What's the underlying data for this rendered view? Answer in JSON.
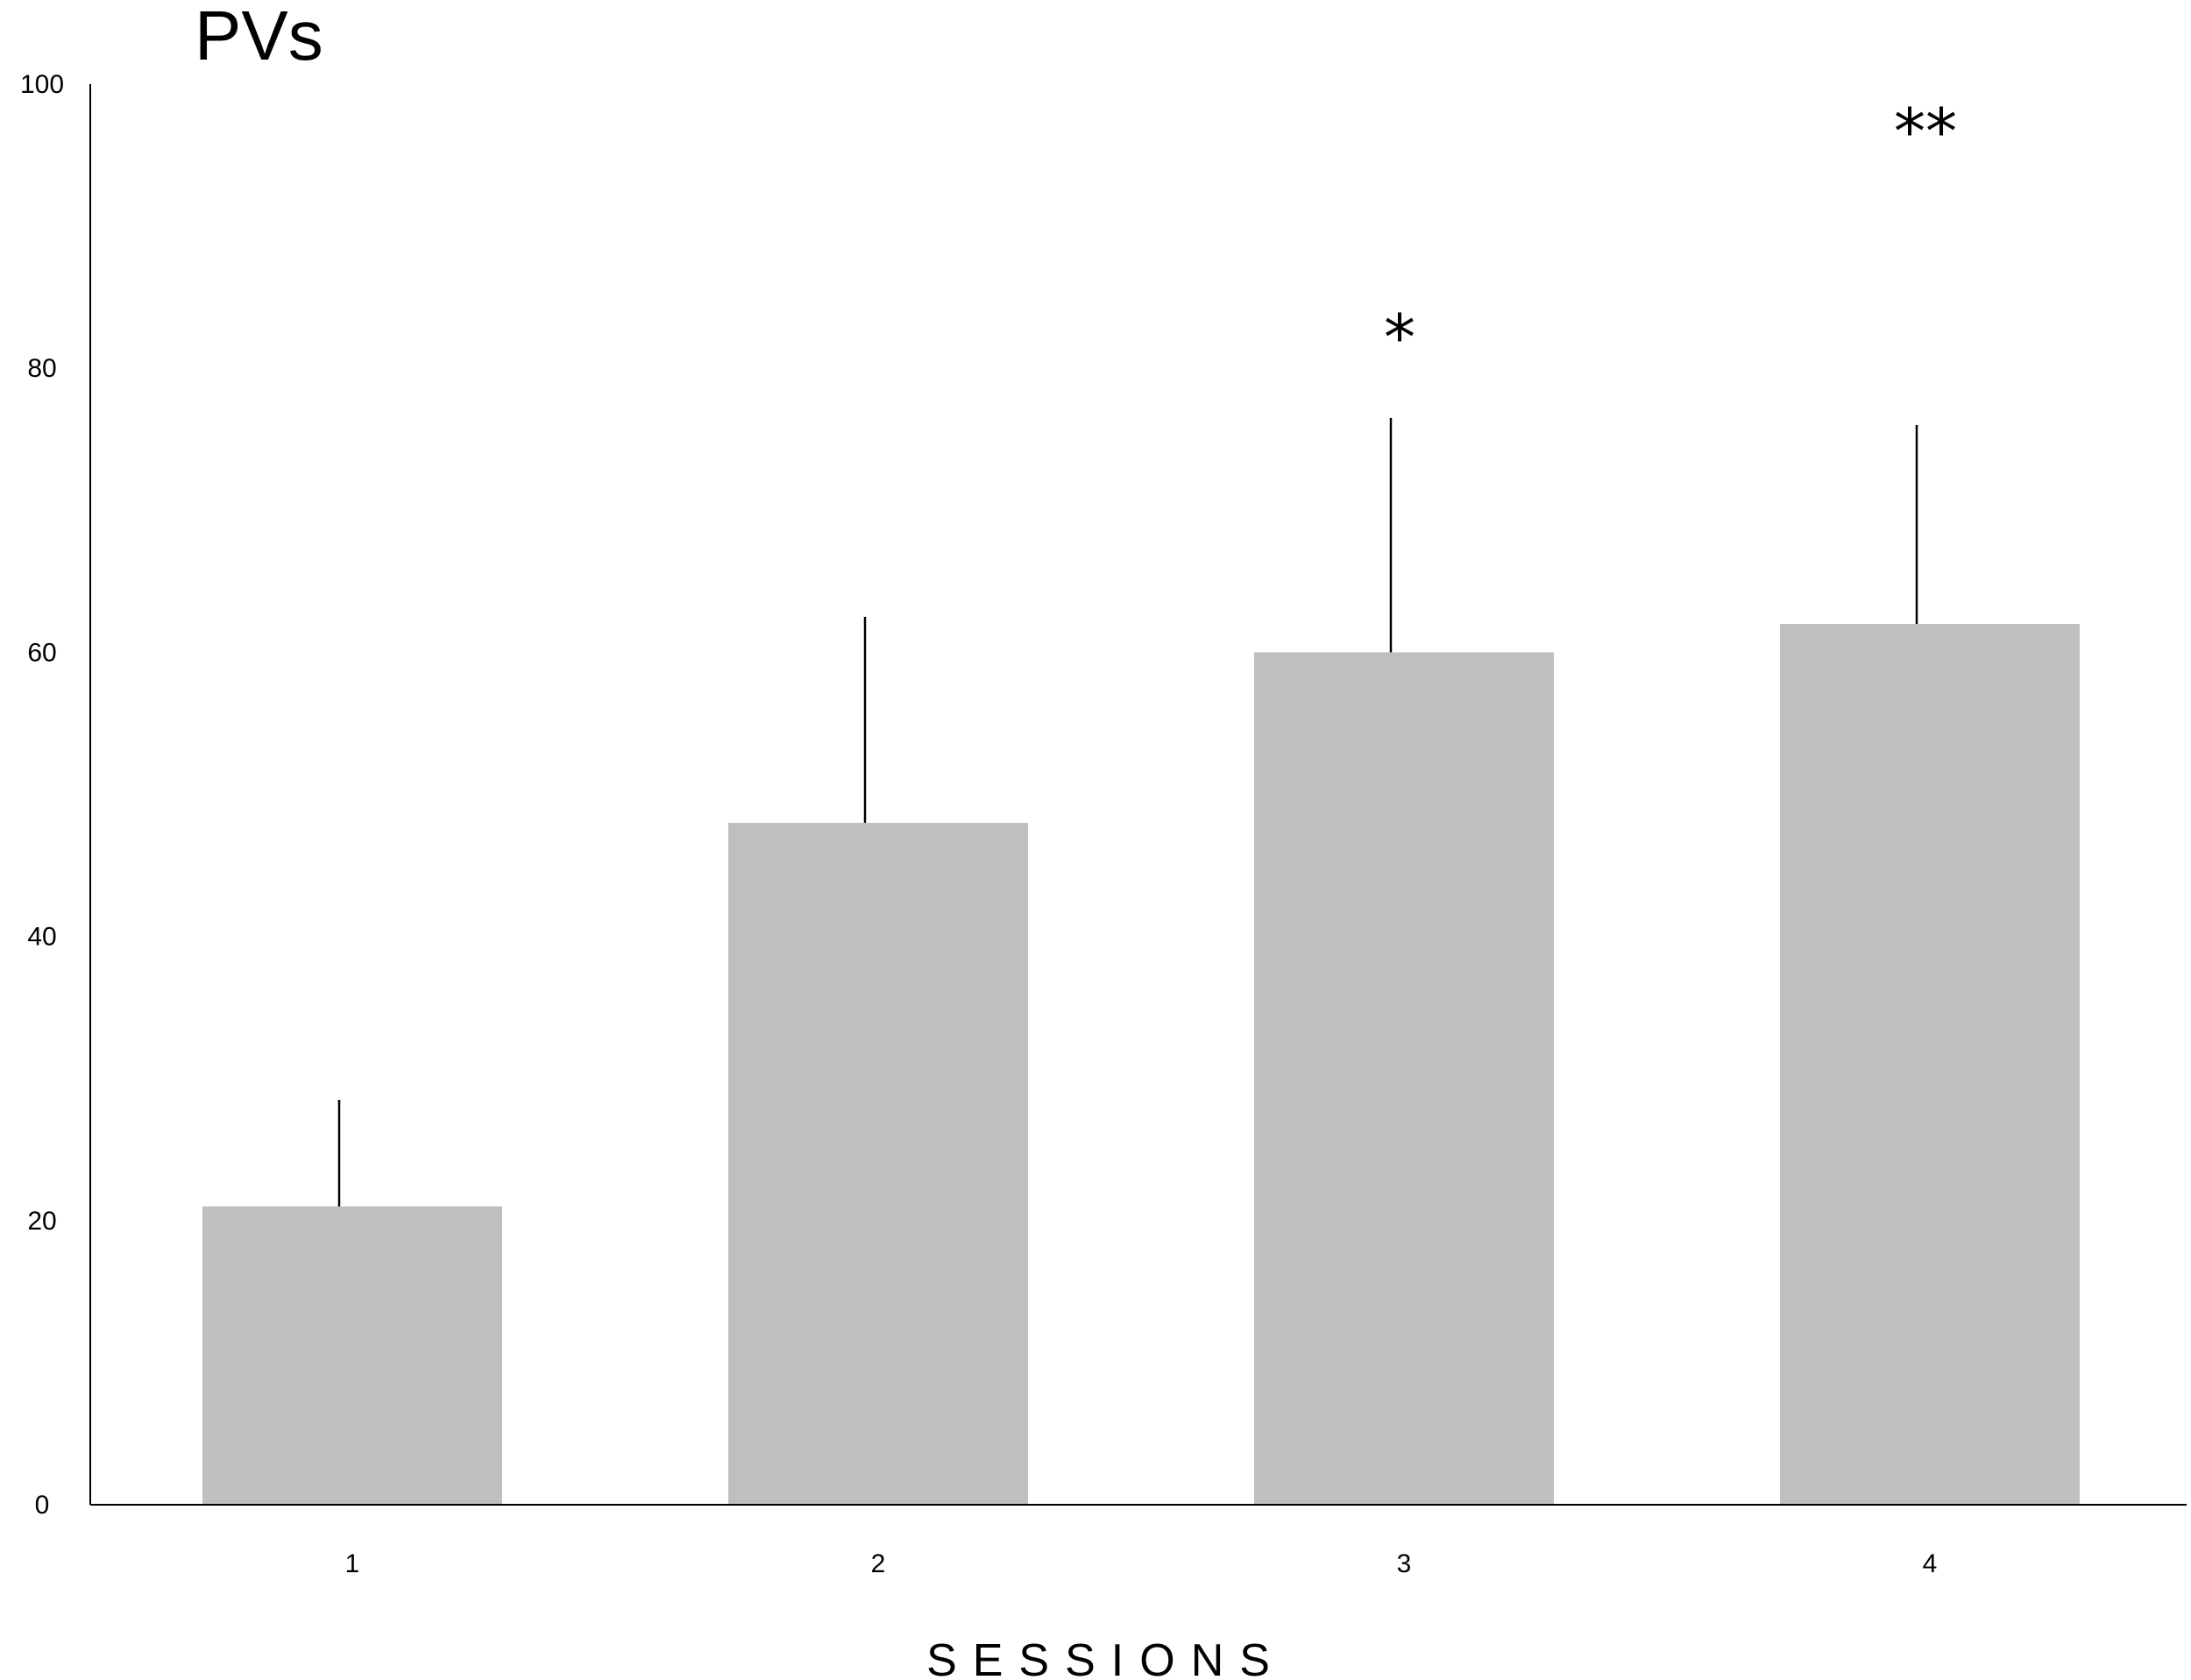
{
  "chart_data": {
    "type": "bar",
    "title": "PVs",
    "xlabel": "SESSIONS",
    "ylabel": "",
    "categories": [
      "1",
      "2",
      "3",
      "4"
    ],
    "values": [
      21,
      48,
      60,
      62
    ],
    "error_upper": [
      28.5,
      62.5,
      76.5,
      76
    ],
    "annotations": [
      "",
      "",
      "*",
      "**"
    ],
    "ylim": [
      0,
      100
    ],
    "yticks": [
      0,
      20,
      40,
      60,
      80,
      100
    ],
    "bar_color": "#bfbfbf",
    "grid": false,
    "legend": "none"
  }
}
